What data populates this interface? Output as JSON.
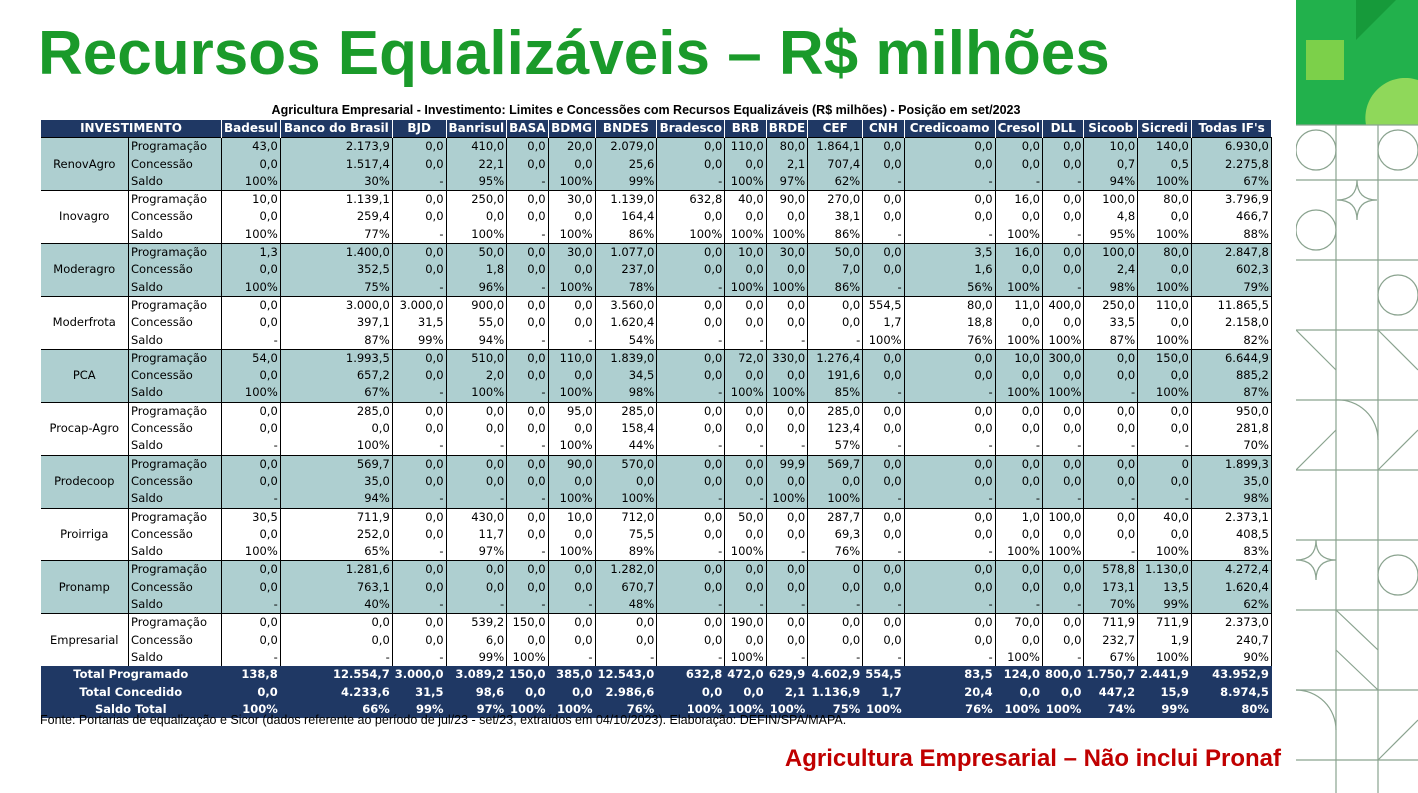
{
  "title": "Recursos Equalizáveis – R$ milhões",
  "subtitle": "Agricultura Empresarial - Investimento: Limites e Concessões com Recursos Equalizáveis (R$ milhões) - Posição em set/2023",
  "header": [
    "INVESTIMENTO",
    "Badesul",
    "Banco do Brasil",
    "BJD",
    "Banrisul",
    "BASA",
    "BDMG",
    "BNDES",
    "Bradesco",
    "BRB",
    "BRDE",
    "CEF",
    "CNH",
    "Credicoamo",
    "Cresol",
    "DLL",
    "Sicoob",
    "Sicredi",
    "Todas IF's"
  ],
  "groups": [
    {
      "name": "RenovAgro",
      "shaded": true,
      "rows": [
        [
          "Programação",
          "43,0",
          "2.173,9",
          "0,0",
          "410,0",
          "0,0",
          "20,0",
          "2.079,0",
          "0,0",
          "110,0",
          "80,0",
          "1.864,1",
          "0,0",
          "0,0",
          "0,0",
          "0,0",
          "10,0",
          "140,0",
          "6.930,0"
        ],
        [
          "Concessão",
          "0,0",
          "1.517,4",
          "0,0",
          "22,1",
          "0,0",
          "0,0",
          "25,6",
          "0,0",
          "0,0",
          "2,1",
          "707,4",
          "0,0",
          "0,0",
          "0,0",
          "0,0",
          "0,7",
          "0,5",
          "2.275,8"
        ],
        [
          "Saldo",
          "100%",
          "30%",
          "-",
          "95%",
          "-",
          "100%",
          "99%",
          "-",
          "100%",
          "97%",
          "62%",
          "-",
          "-",
          "-",
          "-",
          "94%",
          "100%",
          "67%"
        ]
      ]
    },
    {
      "name": "Inovagro",
      "shaded": false,
      "rows": [
        [
          "Programação",
          "10,0",
          "1.139,1",
          "0,0",
          "250,0",
          "0,0",
          "30,0",
          "1.139,0",
          "632,8",
          "40,0",
          "90,0",
          "270,0",
          "0,0",
          "0,0",
          "16,0",
          "0,0",
          "100,0",
          "80,0",
          "3.796,9"
        ],
        [
          "Concessão",
          "0,0",
          "259,4",
          "0,0",
          "0,0",
          "0,0",
          "0,0",
          "164,4",
          "0,0",
          "0,0",
          "0,0",
          "38,1",
          "0,0",
          "0,0",
          "0,0",
          "0,0",
          "4,8",
          "0,0",
          "466,7"
        ],
        [
          "Saldo",
          "100%",
          "77%",
          "-",
          "100%",
          "-",
          "100%",
          "86%",
          "100%",
          "100%",
          "100%",
          "86%",
          "-",
          "-",
          "100%",
          "-",
          "95%",
          "100%",
          "88%"
        ]
      ]
    },
    {
      "name": "Moderagro",
      "shaded": true,
      "rows": [
        [
          "Programação",
          "1,3",
          "1.400,0",
          "0,0",
          "50,0",
          "0,0",
          "30,0",
          "1.077,0",
          "0,0",
          "10,0",
          "30,0",
          "50,0",
          "0,0",
          "3,5",
          "16,0",
          "0,0",
          "100,0",
          "80,0",
          "2.847,8"
        ],
        [
          "Concessão",
          "0,0",
          "352,5",
          "0,0",
          "1,8",
          "0,0",
          "0,0",
          "237,0",
          "0,0",
          "0,0",
          "0,0",
          "7,0",
          "0,0",
          "1,6",
          "0,0",
          "0,0",
          "2,4",
          "0,0",
          "602,3"
        ],
        [
          "Saldo",
          "100%",
          "75%",
          "-",
          "96%",
          "-",
          "100%",
          "78%",
          "-",
          "100%",
          "100%",
          "86%",
          "-",
          "56%",
          "100%",
          "-",
          "98%",
          "100%",
          "79%"
        ]
      ]
    },
    {
      "name": "Moderfrota",
      "shaded": false,
      "rows": [
        [
          "Programação",
          "0,0",
          "3.000,0",
          "3.000,0",
          "900,0",
          "0,0",
          "0,0",
          "3.560,0",
          "0,0",
          "0,0",
          "0,0",
          "0,0",
          "554,5",
          "80,0",
          "11,0",
          "400,0",
          "250,0",
          "110,0",
          "11.865,5"
        ],
        [
          "Concessão",
          "0,0",
          "397,1",
          "31,5",
          "55,0",
          "0,0",
          "0,0",
          "1.620,4",
          "0,0",
          "0,0",
          "0,0",
          "0,0",
          "1,7",
          "18,8",
          "0,0",
          "0,0",
          "33,5",
          "0,0",
          "2.158,0"
        ],
        [
          "Saldo",
          "-",
          "87%",
          "99%",
          "94%",
          "-",
          "-",
          "54%",
          "-",
          "-",
          "-",
          "-",
          "100%",
          "76%",
          "100%",
          "100%",
          "87%",
          "100%",
          "82%"
        ]
      ]
    },
    {
      "name": "PCA",
      "shaded": true,
      "rows": [
        [
          "Programação",
          "54,0",
          "1.993,5",
          "0,0",
          "510,0",
          "0,0",
          "110,0",
          "1.839,0",
          "0,0",
          "72,0",
          "330,0",
          "1.276,4",
          "0,0",
          "0,0",
          "10,0",
          "300,0",
          "0,0",
          "150,0",
          "6.644,9"
        ],
        [
          "Concessão",
          "0,0",
          "657,2",
          "0,0",
          "2,0",
          "0,0",
          "0,0",
          "34,5",
          "0,0",
          "0,0",
          "0,0",
          "191,6",
          "0,0",
          "0,0",
          "0,0",
          "0,0",
          "0,0",
          "0,0",
          "885,2"
        ],
        [
          "Saldo",
          "100%",
          "67%",
          "-",
          "100%",
          "-",
          "100%",
          "98%",
          "-",
          "100%",
          "100%",
          "85%",
          "-",
          "-",
          "100%",
          "100%",
          "-",
          "100%",
          "87%"
        ]
      ]
    },
    {
      "name": "Procap-Agro",
      "shaded": false,
      "rows": [
        [
          "Programação",
          "0,0",
          "285,0",
          "0,0",
          "0,0",
          "0,0",
          "95,0",
          "285,0",
          "0,0",
          "0,0",
          "0,0",
          "285,0",
          "0,0",
          "0,0",
          "0,0",
          "0,0",
          "0,0",
          "0,0",
          "950,0"
        ],
        [
          "Concessão",
          "0,0",
          "0,0",
          "0,0",
          "0,0",
          "0,0",
          "0,0",
          "158,4",
          "0,0",
          "0,0",
          "0,0",
          "123,4",
          "0,0",
          "0,0",
          "0,0",
          "0,0",
          "0,0",
          "0,0",
          "281,8"
        ],
        [
          "Saldo",
          "-",
          "100%",
          "-",
          "-",
          "-",
          "100%",
          "44%",
          "-",
          "-",
          "-",
          "57%",
          "-",
          "-",
          "-",
          "-",
          "-",
          "-",
          "70%"
        ]
      ]
    },
    {
      "name": "Prodecoop",
      "shaded": true,
      "rows": [
        [
          "Programação",
          "0,0",
          "569,7",
          "0,0",
          "0,0",
          "0,0",
          "90,0",
          "570,0",
          "0,0",
          "0,0",
          "99,9",
          "569,7",
          "0,0",
          "0,0",
          "0,0",
          "0,0",
          "0,0",
          "0",
          "1.899,3"
        ],
        [
          "Concessão",
          "0,0",
          "35,0",
          "0,0",
          "0,0",
          "0,0",
          "0,0",
          "0,0",
          "0,0",
          "0,0",
          "0,0",
          "0,0",
          "0,0",
          "0,0",
          "0,0",
          "0,0",
          "0,0",
          "0,0",
          "35,0"
        ],
        [
          "Saldo",
          "-",
          "94%",
          "-",
          "-",
          "-",
          "100%",
          "100%",
          "-",
          "-",
          "100%",
          "100%",
          "-",
          "-",
          "-",
          "-",
          "-",
          "-",
          "98%"
        ]
      ]
    },
    {
      "name": "Proirriga",
      "shaded": false,
      "rows": [
        [
          "Programação",
          "30,5",
          "711,9",
          "0,0",
          "430,0",
          "0,0",
          "10,0",
          "712,0",
          "0,0",
          "50,0",
          "0,0",
          "287,7",
          "0,0",
          "0,0",
          "1,0",
          "100,0",
          "0,0",
          "40,0",
          "2.373,1"
        ],
        [
          "Concessão",
          "0,0",
          "252,0",
          "0,0",
          "11,7",
          "0,0",
          "0,0",
          "75,5",
          "0,0",
          "0,0",
          "0,0",
          "69,3",
          "0,0",
          "0,0",
          "0,0",
          "0,0",
          "0,0",
          "0,0",
          "408,5"
        ],
        [
          "Saldo",
          "100%",
          "65%",
          "-",
          "97%",
          "-",
          "100%",
          "89%",
          "-",
          "100%",
          "-",
          "76%",
          "-",
          "-",
          "100%",
          "100%",
          "-",
          "100%",
          "83%"
        ]
      ]
    },
    {
      "name": "Pronamp",
      "shaded": true,
      "rows": [
        [
          "Programação",
          "0,0",
          "1.281,6",
          "0,0",
          "0,0",
          "0,0",
          "0,0",
          "1.282,0",
          "0,0",
          "0,0",
          "0,0",
          "0",
          "0,0",
          "0,0",
          "0,0",
          "0,0",
          "578,8",
          "1.130,0",
          "4.272,4"
        ],
        [
          "Concessão",
          "0,0",
          "763,1",
          "0,0",
          "0,0",
          "0,0",
          "0,0",
          "670,7",
          "0,0",
          "0,0",
          "0,0",
          "0,0",
          "0,0",
          "0,0",
          "0,0",
          "0,0",
          "173,1",
          "13,5",
          "1.620,4"
        ],
        [
          "Saldo",
          "-",
          "40%",
          "-",
          "-",
          "-",
          "-",
          "48%",
          "-",
          "-",
          "-",
          "-",
          "-",
          "-",
          "-",
          "-",
          "70%",
          "99%",
          "62%"
        ]
      ]
    },
    {
      "name": "Empresarial",
      "shaded": false,
      "rows": [
        [
          "Programação",
          "0,0",
          "0,0",
          "0,0",
          "539,2",
          "150,0",
          "0,0",
          "0,0",
          "0,0",
          "190,0",
          "0,0",
          "0,0",
          "0,0",
          "0,0",
          "70,0",
          "0,0",
          "711,9",
          "711,9",
          "2.373,0"
        ],
        [
          "Concessão",
          "0,0",
          "0,0",
          "0,0",
          "6,0",
          "0,0",
          "0,0",
          "0,0",
          "0,0",
          "0,0",
          "0,0",
          "0,0",
          "0,0",
          "0,0",
          "0,0",
          "0,0",
          "232,7",
          "1,9",
          "240,7"
        ],
        [
          "Saldo",
          "-",
          "-",
          "-",
          "99%",
          "100%",
          "-",
          "-",
          "-",
          "100%",
          "-",
          "-",
          "-",
          "-",
          "100%",
          "-",
          "67%",
          "100%",
          "90%"
        ]
      ]
    }
  ],
  "totals": [
    [
      "Total Programado",
      "138,8",
      "12.554,7",
      "3.000,0",
      "3.089,2",
      "150,0",
      "385,0",
      "12.543,0",
      "632,8",
      "472,0",
      "629,9",
      "4.602,9",
      "554,5",
      "83,5",
      "124,0",
      "800,0",
      "1.750,7",
      "2.441,9",
      "43.952,9"
    ],
    [
      "Total Concedido",
      "0,0",
      "4.233,6",
      "31,5",
      "98,6",
      "0,0",
      "0,0",
      "2.986,6",
      "0,0",
      "0,0",
      "2,1",
      "1.136,9",
      "1,7",
      "20,4",
      "0,0",
      "0,0",
      "447,2",
      "15,9",
      "8.974,5"
    ],
    [
      "Saldo Total",
      "100%",
      "66%",
      "99%",
      "97%",
      "100%",
      "100%",
      "76%",
      "100%",
      "100%",
      "100%",
      "75%",
      "100%",
      "76%",
      "100%",
      "100%",
      "74%",
      "99%",
      "80%"
    ]
  ],
  "source": "Fonte: Portarias de equalização e Sicor (dados referente ao período de jul/23 - set/23, extraídos em 04/10/2023). Elaboração: DEFIN/SPA/MAPA.",
  "tagline": "Agricultura Empresarial – Não inclui Pronaf",
  "colors": {
    "title": "#1a9a2a",
    "header_bg": "#1f3864",
    "shade": "#aecfd0",
    "tagline": "#c00000",
    "deco_green": "#22b14c"
  }
}
